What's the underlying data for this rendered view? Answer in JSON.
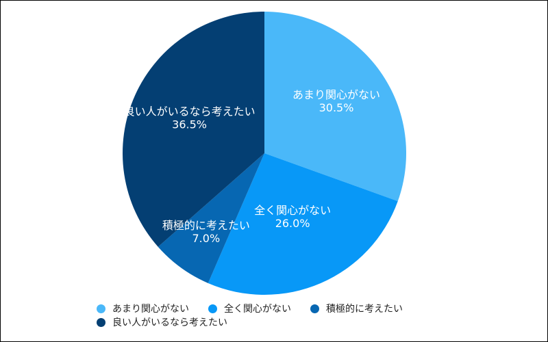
{
  "chart_data": {
    "type": "pie",
    "title": "",
    "slices": [
      {
        "label": "あまり関心がない",
        "value": 30.5,
        "value_label": "30.5%",
        "color": "#4ab8f9"
      },
      {
        "label": "全く関心がない",
        "value": 26.0,
        "value_label": "26.0%",
        "color": "#0898f7"
      },
      {
        "label": "積極的に考えたい",
        "value": 7.0,
        "value_label": "7.0%",
        "color": "#0767b2"
      },
      {
        "label": "良い人がいるなら考えたい",
        "value": 36.5,
        "value_label": "36.5%",
        "color": "#043f73"
      }
    ],
    "legend_position": "bottom"
  },
  "legend": {
    "items": [
      {
        "label": "あまり関心がない",
        "color": "#4ab8f9"
      },
      {
        "label": "全く関心がない",
        "color": "#0898f7"
      },
      {
        "label": "積極的に考えたい",
        "color": "#0767b2"
      },
      {
        "label": "良い人がいるなら考えたい",
        "color": "#043f73"
      }
    ]
  }
}
